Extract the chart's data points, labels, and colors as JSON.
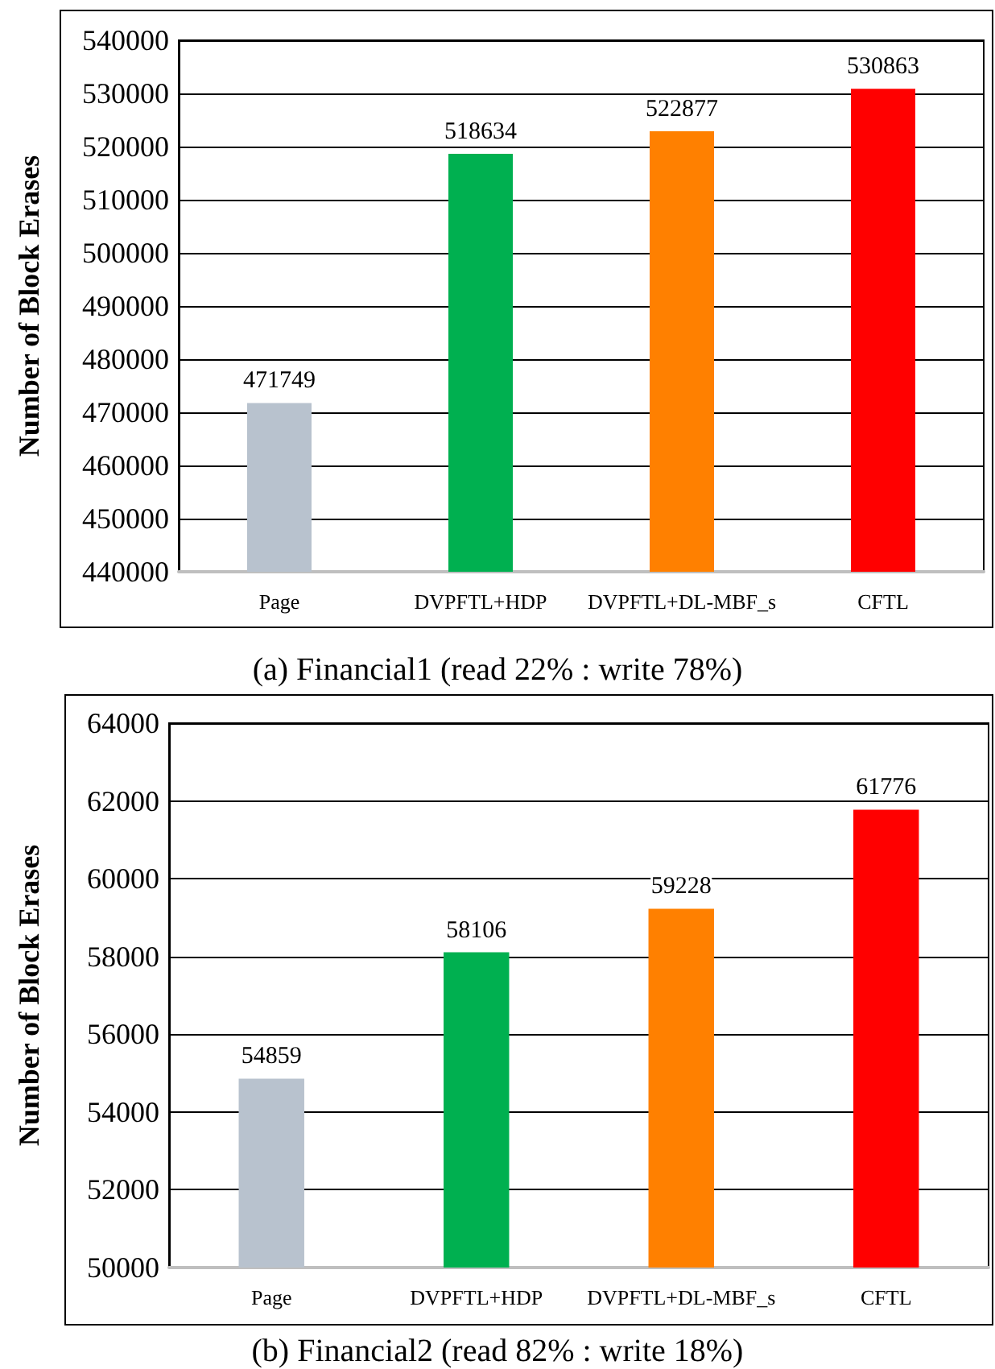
{
  "chart_data": [
    {
      "type": "bar",
      "title": "(a) Financial1 (read 22% : write 78%)",
      "ylabel": "Number of Block Erases",
      "categories": [
        "Page",
        "DVPFTL+HDP",
        "DVPFTL+DL-MBF_s",
        "CFTL"
      ],
      "values": [
        471749,
        518634,
        522877,
        530863
      ],
      "colors": [
        "#b8c2ce",
        "#00b050",
        "#ff8000",
        "#ff0000"
      ],
      "ylim": [
        440000,
        540000
      ],
      "yticks": [
        440000,
        450000,
        460000,
        470000,
        480000,
        490000,
        500000,
        510000,
        520000,
        530000,
        540000
      ],
      "grid": "y",
      "data_labels": true
    },
    {
      "type": "bar",
      "title": "(b) Financial2 (read 82% : write 18%)",
      "ylabel": "Number of Block Erases",
      "categories": [
        "Page",
        "DVPFTL+HDP",
        "DVPFTL+DL-MBF_s",
        "CFTL"
      ],
      "values": [
        54859,
        58106,
        59228,
        61776
      ],
      "colors": [
        "#b8c2ce",
        "#00b050",
        "#ff8000",
        "#ff0000"
      ],
      "ylim": [
        50000,
        64000
      ],
      "yticks": [
        50000,
        52000,
        54000,
        56000,
        58000,
        60000,
        62000,
        64000
      ],
      "grid": "y",
      "data_labels": true
    }
  ]
}
